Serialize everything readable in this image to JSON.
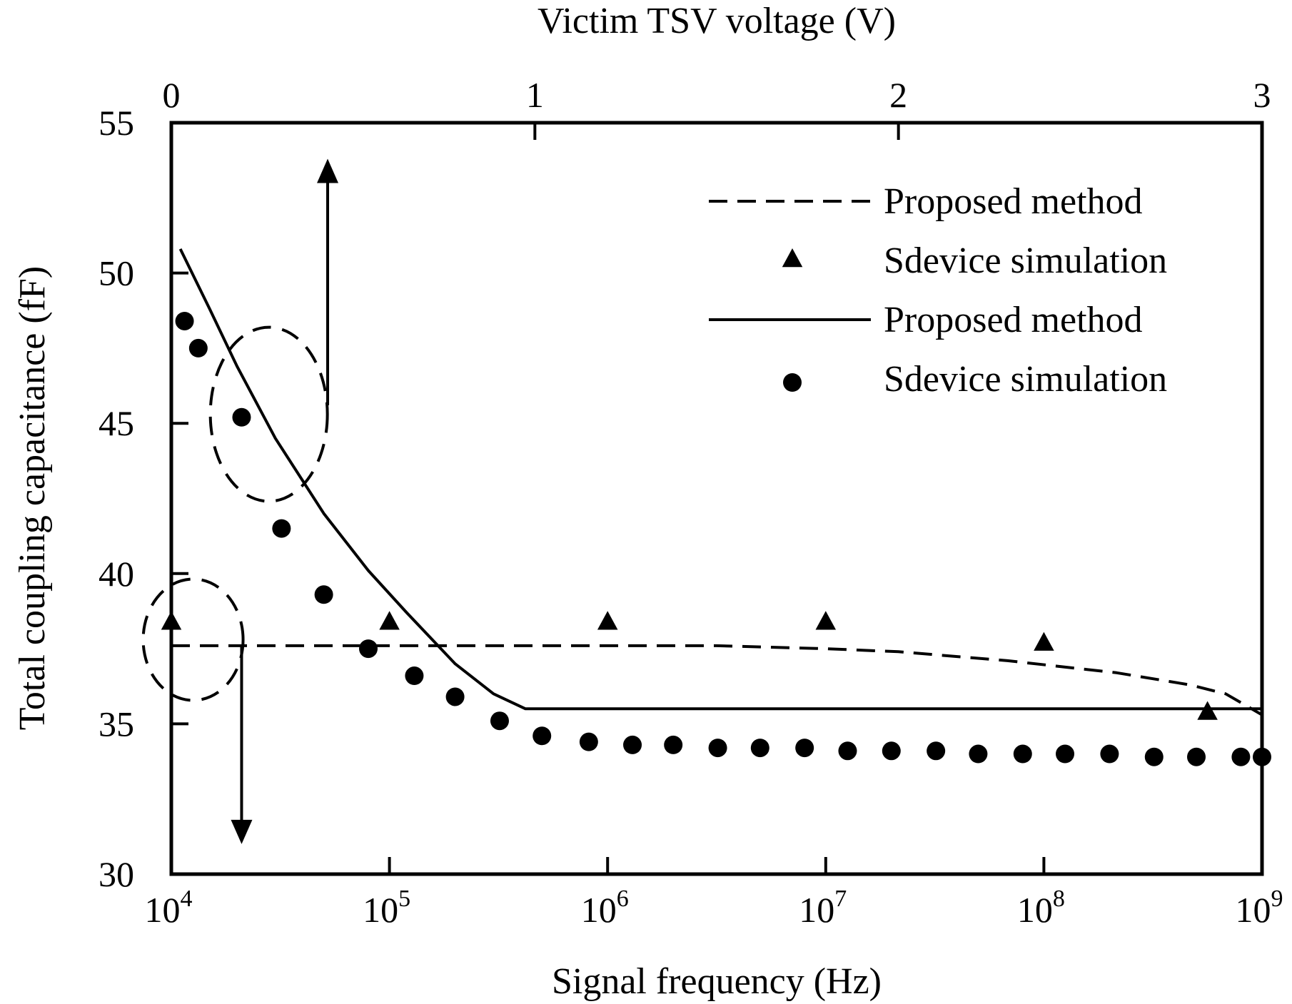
{
  "chart_data": {
    "type": "scatter",
    "title": "",
    "xlabel": "Signal frequency (Hz)",
    "x2label": "Victim TSV voltage (V)",
    "ylabel": "Total coupling capacitance (fF)",
    "xscale": "log",
    "xlim": [
      10000,
      1000000000
    ],
    "x2lim": [
      0,
      3
    ],
    "ylim": [
      30,
      55
    ],
    "x_ticks": [
      {
        "base": "10",
        "exp": "4",
        "value": 10000
      },
      {
        "base": "10",
        "exp": "5",
        "value": 100000
      },
      {
        "base": "10",
        "exp": "6",
        "value": 1000000
      },
      {
        "base": "10",
        "exp": "7",
        "value": 10000000
      },
      {
        "base": "10",
        "exp": "8",
        "value": 100000000
      },
      {
        "base": "10",
        "exp": "9",
        "value": 1000000000
      }
    ],
    "x2_ticks": [
      "0",
      "1",
      "2",
      "3"
    ],
    "y_ticks": [
      "30",
      "35",
      "40",
      "45",
      "50",
      "55"
    ],
    "grid": false,
    "legend_position": "top-right",
    "legend": [
      {
        "label": "Proposed method",
        "style": "dashed"
      },
      {
        "label": "Sdevice simulation",
        "style": "triangle"
      },
      {
        "label": "Proposed method",
        "style": "solid"
      },
      {
        "label": "Sdevice simulation",
        "style": "circle"
      }
    ],
    "series": [
      {
        "name": "Proposed method",
        "axis": "voltage",
        "style": "dashed",
        "x": [
          0,
          0.5,
          1.0,
          1.5,
          1.8,
          2.0,
          2.3,
          2.6,
          2.8,
          2.9,
          3.0
        ],
        "y": [
          37.6,
          37.6,
          37.6,
          37.6,
          37.5,
          37.4,
          37.1,
          36.7,
          36.3,
          36.0,
          35.3
        ]
      },
      {
        "name": "Sdevice simulation",
        "axis": "voltage",
        "style": "triangle",
        "x": [
          0,
          0.6,
          1.2,
          1.8,
          2.4,
          2.85
        ],
        "y": [
          38.4,
          38.4,
          38.4,
          38.4,
          37.7,
          35.4
        ]
      },
      {
        "name": "Proposed method",
        "axis": "frequency",
        "style": "solid",
        "x": [
          11000,
          15000,
          20000,
          30000,
          50000,
          80000,
          120000,
          200000,
          300000,
          420000,
          1000000,
          10000000,
          100000000,
          1000000000
        ],
        "y": [
          50.8,
          48.8,
          46.9,
          44.5,
          42.0,
          40.1,
          38.7,
          37.0,
          36.0,
          35.5,
          35.5,
          35.5,
          35.5,
          35.5
        ]
      },
      {
        "name": "Sdevice simulation",
        "axis": "frequency",
        "style": "circle",
        "x": [
          11500,
          13300,
          21000,
          32000,
          50000,
          80000,
          130000,
          200000,
          320000,
          500000,
          820000,
          1300000,
          2000000,
          3200000,
          5000000,
          8000000,
          12600000,
          20000000,
          32000000,
          50000000,
          80000000,
          125000000,
          200000000,
          320000000,
          500000000,
          800000000,
          1000000000
        ],
        "y": [
          48.4,
          47.5,
          45.2,
          41.5,
          39.3,
          37.5,
          36.6,
          35.9,
          35.1,
          34.6,
          34.4,
          34.3,
          34.3,
          34.2,
          34.2,
          34.2,
          34.1,
          34.1,
          34.1,
          34.0,
          34.0,
          34.0,
          34.0,
          33.9,
          33.9,
          33.9,
          33.9
        ]
      }
    ],
    "annotations": [
      {
        "type": "ellipse",
        "target": "frequency",
        "x": 28000,
        "y": 45.3
      },
      {
        "type": "ellipse",
        "target": "voltage",
        "x": 0.06,
        "y": 37.8
      },
      {
        "type": "arrow",
        "points_to": "voltage",
        "x": 0.43,
        "from_y": 45.6,
        "to_y": 53.8
      },
      {
        "type": "arrow",
        "points_to": "frequency",
        "x": 21000,
        "from_y": 37.6,
        "to_y": 31.0
      }
    ]
  }
}
